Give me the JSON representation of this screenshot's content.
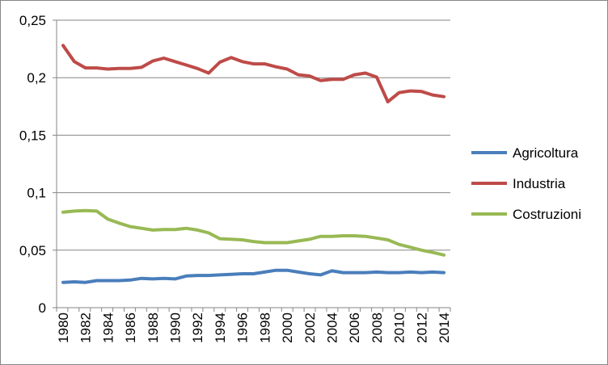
{
  "chart_data": {
    "type": "line",
    "title": "",
    "xlabel": "",
    "ylabel": "",
    "ylim": [
      0,
      0.25
    ],
    "y_ticks": [
      0,
      0.05,
      0.1,
      0.15,
      0.2,
      0.25
    ],
    "y_tick_labels": [
      "0",
      "0,05",
      "0,1",
      "0,15",
      "0,2",
      "0,25"
    ],
    "x_ticks": [
      1980,
      1982,
      1984,
      1986,
      1988,
      1990,
      1992,
      1994,
      1996,
      1998,
      2000,
      2002,
      2004,
      2006,
      2008,
      2010,
      2012,
      2014
    ],
    "x_tick_labels": [
      "1980",
      "1982",
      "1984",
      "1986",
      "1988",
      "1990",
      "1992",
      "1994",
      "1996",
      "1998",
      "2000",
      "2002",
      "2004",
      "2006",
      "2008",
      "2010",
      "2012",
      "2014"
    ],
    "x": [
      1980,
      1981,
      1982,
      1983,
      1984,
      1985,
      1986,
      1987,
      1988,
      1989,
      1990,
      1991,
      1992,
      1993,
      1994,
      1995,
      1996,
      1997,
      1998,
      1999,
      2000,
      2001,
      2002,
      2003,
      2004,
      2005,
      2006,
      2007,
      2008,
      2009,
      2010,
      2011,
      2012,
      2013,
      2014
    ],
    "grid": "horizontal",
    "legend_position": "right",
    "series": [
      {
        "name": "Agricoltura",
        "color": "#4a7ebb",
        "values": [
          0.022,
          0.0225,
          0.022,
          0.0235,
          0.0235,
          0.0235,
          0.024,
          0.0255,
          0.025,
          0.0255,
          0.025,
          0.0275,
          0.028,
          0.028,
          0.0285,
          0.029,
          0.0295,
          0.0295,
          0.031,
          0.0325,
          0.0325,
          0.031,
          0.0295,
          0.0285,
          0.032,
          0.0305,
          0.0305,
          0.0305,
          0.031,
          0.0305,
          0.0305,
          0.031,
          0.0305,
          0.031,
          0.0305
        ]
      },
      {
        "name": "Industria",
        "color": "#be4b48",
        "values": [
          0.228,
          0.214,
          0.2085,
          0.2085,
          0.2075,
          0.208,
          0.208,
          0.209,
          0.2145,
          0.217,
          0.214,
          0.211,
          0.208,
          0.204,
          0.2135,
          0.2175,
          0.214,
          0.212,
          0.212,
          0.2095,
          0.2075,
          0.2025,
          0.2015,
          0.1975,
          0.1985,
          0.1985,
          0.2025,
          0.204,
          0.2005,
          0.179,
          0.187,
          0.1885,
          0.188,
          0.185,
          0.1835
        ]
      },
      {
        "name": "Costruzioni",
        "color": "#98b954",
        "values": [
          0.083,
          0.084,
          0.0845,
          0.084,
          0.077,
          0.0735,
          0.0705,
          0.069,
          0.0675,
          0.068,
          0.068,
          0.069,
          0.0675,
          0.065,
          0.06,
          0.0595,
          0.059,
          0.0575,
          0.0565,
          0.0565,
          0.0565,
          0.058,
          0.0595,
          0.062,
          0.062,
          0.0625,
          0.0625,
          0.062,
          0.0605,
          0.059,
          0.055,
          0.0525,
          0.05,
          0.048,
          0.0458
        ]
      }
    ]
  }
}
